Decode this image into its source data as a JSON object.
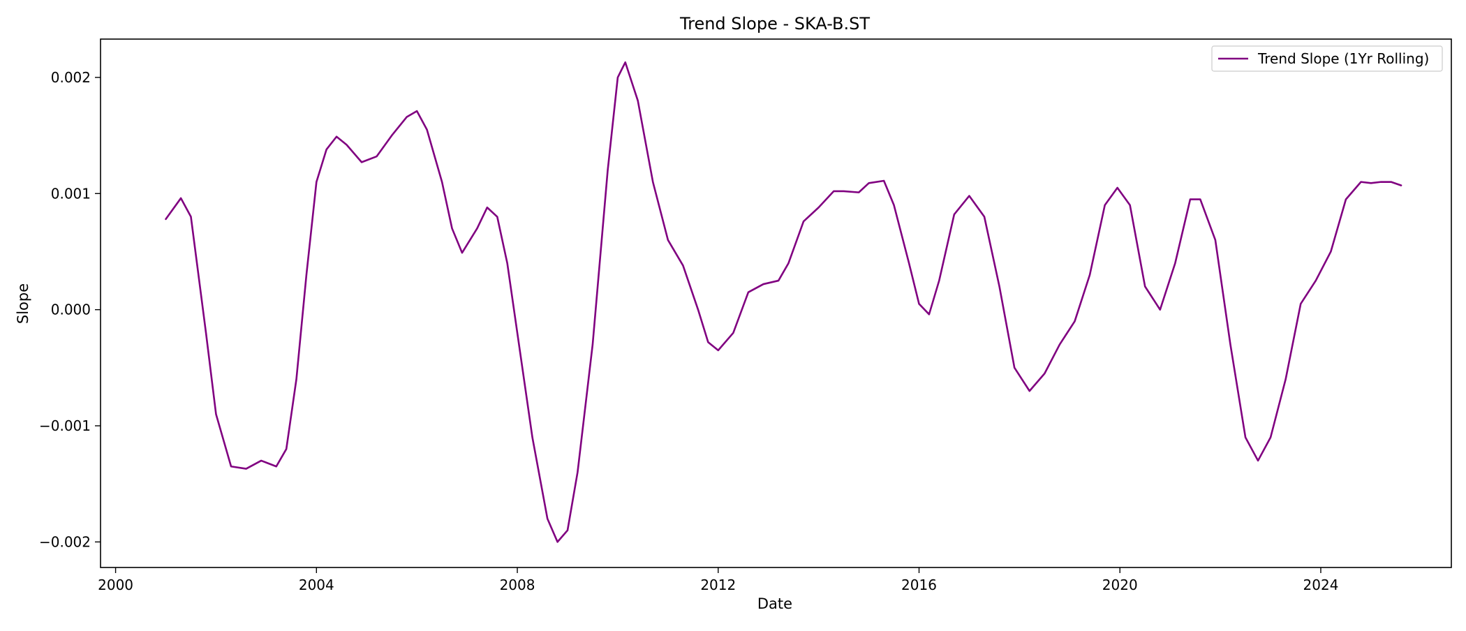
{
  "chart_data": {
    "type": "line",
    "title": "Trend Slope - SKA-B.ST",
    "xlabel": "Date",
    "ylabel": "Slope",
    "xlim": [
      1999.7,
      2026.6
    ],
    "ylim": [
      -0.00222,
      0.00233
    ],
    "x_ticks": [
      2000,
      2004,
      2008,
      2012,
      2016,
      2020,
      2024
    ],
    "x_tick_labels": [
      "2000",
      "2004",
      "2008",
      "2012",
      "2016",
      "2020",
      "2024"
    ],
    "y_ticks": [
      -0.002,
      -0.001,
      0.0,
      0.001,
      0.002
    ],
    "y_tick_labels": [
      "−0.002",
      "−0.001",
      "0.000",
      "0.001",
      "0.002"
    ],
    "grid": false,
    "legend_position": "top-right",
    "series": [
      {
        "name": "Trend Slope (1Yr Rolling)",
        "color": "#800080",
        "points": [
          [
            2001.0,
            0.00078
          ],
          [
            2001.3,
            0.00096
          ],
          [
            2001.5,
            0.0008
          ],
          [
            2001.8,
            -0.0002
          ],
          [
            2002.0,
            -0.0009
          ],
          [
            2002.3,
            -0.00135
          ],
          [
            2002.6,
            -0.00137
          ],
          [
            2002.9,
            -0.0013
          ],
          [
            2003.2,
            -0.00135
          ],
          [
            2003.4,
            -0.0012
          ],
          [
            2003.6,
            -0.0006
          ],
          [
            2003.8,
            0.0003
          ],
          [
            2004.0,
            0.0011
          ],
          [
            2004.2,
            0.00138
          ],
          [
            2004.4,
            0.00149
          ],
          [
            2004.6,
            0.00142
          ],
          [
            2004.9,
            0.00127
          ],
          [
            2005.2,
            0.00132
          ],
          [
            2005.5,
            0.0015
          ],
          [
            2005.8,
            0.00166
          ],
          [
            2006.0,
            0.00171
          ],
          [
            2006.2,
            0.00155
          ],
          [
            2006.5,
            0.0011
          ],
          [
            2006.7,
            0.0007
          ],
          [
            2006.9,
            0.00049
          ],
          [
            2007.2,
            0.0007
          ],
          [
            2007.4,
            0.00088
          ],
          [
            2007.6,
            0.0008
          ],
          [
            2007.8,
            0.0004
          ],
          [
            2008.0,
            -0.0002
          ],
          [
            2008.3,
            -0.0011
          ],
          [
            2008.6,
            -0.0018
          ],
          [
            2008.8,
            -0.002
          ],
          [
            2009.0,
            -0.0019
          ],
          [
            2009.2,
            -0.0014
          ],
          [
            2009.5,
            -0.0003
          ],
          [
            2009.8,
            0.0012
          ],
          [
            2010.0,
            0.002
          ],
          [
            2010.15,
            0.00213
          ],
          [
            2010.4,
            0.0018
          ],
          [
            2010.7,
            0.0011
          ],
          [
            2011.0,
            0.0006
          ],
          [
            2011.3,
            0.00038
          ],
          [
            2011.6,
            0.0
          ],
          [
            2011.8,
            -0.00028
          ],
          [
            2012.0,
            -0.00035
          ],
          [
            2012.3,
            -0.0002
          ],
          [
            2012.6,
            0.00015
          ],
          [
            2012.9,
            0.00022
          ],
          [
            2013.2,
            0.00025
          ],
          [
            2013.4,
            0.0004
          ],
          [
            2013.7,
            0.00076
          ],
          [
            2014.0,
            0.00088
          ],
          [
            2014.3,
            0.00102
          ],
          [
            2014.5,
            0.00102
          ],
          [
            2014.8,
            0.00101
          ],
          [
            2015.0,
            0.00109
          ],
          [
            2015.3,
            0.00111
          ],
          [
            2015.5,
            0.0009
          ],
          [
            2015.8,
            0.0004
          ],
          [
            2016.0,
            5e-05
          ],
          [
            2016.2,
            -4e-05
          ],
          [
            2016.4,
            0.00025
          ],
          [
            2016.7,
            0.00082
          ],
          [
            2017.0,
            0.00098
          ],
          [
            2017.3,
            0.0008
          ],
          [
            2017.6,
            0.0002
          ],
          [
            2017.9,
            -0.0005
          ],
          [
            2018.2,
            -0.0007
          ],
          [
            2018.5,
            -0.00055
          ],
          [
            2018.8,
            -0.0003
          ],
          [
            2019.1,
            -0.0001
          ],
          [
            2019.4,
            0.0003
          ],
          [
            2019.7,
            0.0009
          ],
          [
            2019.95,
            0.00105
          ],
          [
            2020.2,
            0.0009
          ],
          [
            2020.5,
            0.0002
          ],
          [
            2020.8,
            0.0
          ],
          [
            2021.1,
            0.0004
          ],
          [
            2021.4,
            0.00095
          ],
          [
            2021.6,
            0.00095
          ],
          [
            2021.9,
            0.0006
          ],
          [
            2022.2,
            -0.0003
          ],
          [
            2022.5,
            -0.0011
          ],
          [
            2022.75,
            -0.0013
          ],
          [
            2023.0,
            -0.0011
          ],
          [
            2023.3,
            -0.0006
          ],
          [
            2023.6,
            5e-05
          ],
          [
            2023.9,
            0.00025
          ],
          [
            2024.2,
            0.0005
          ],
          [
            2024.5,
            0.00095
          ],
          [
            2024.8,
            0.0011
          ],
          [
            2025.0,
            0.00109
          ],
          [
            2025.2,
            0.0011
          ],
          [
            2025.4,
            0.0011
          ],
          [
            2025.6,
            0.00107
          ]
        ]
      }
    ]
  }
}
